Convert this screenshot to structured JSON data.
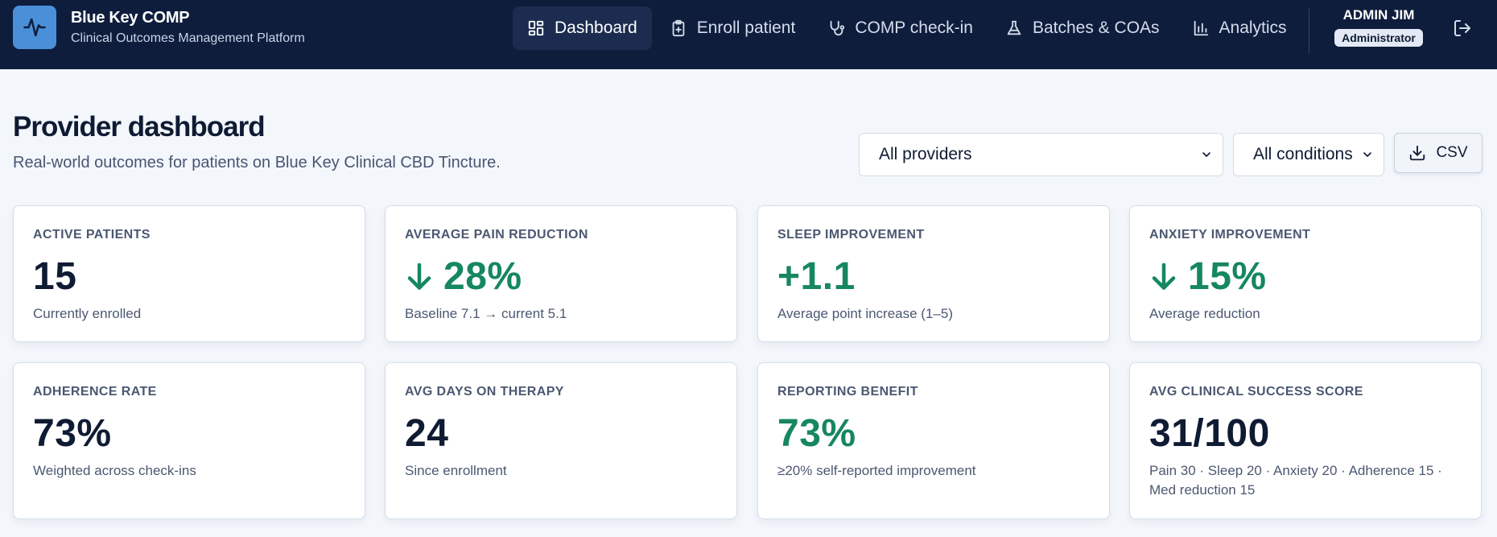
{
  "brand": {
    "title": "Blue Key COMP",
    "subtitle": "Clinical Outcomes Management Platform",
    "logo_icon": "pulse-icon",
    "logo_color": "#4a90d9"
  },
  "nav": {
    "items": [
      {
        "label": "Dashboard",
        "icon": "dashboard-grid-icon",
        "active": true
      },
      {
        "label": "Enroll patient",
        "icon": "clipboard-plus-icon",
        "active": false
      },
      {
        "label": "COMP check-in",
        "icon": "stethoscope-icon",
        "active": false
      },
      {
        "label": "Batches & COAs",
        "icon": "flask-icon",
        "active": false
      },
      {
        "label": "Analytics",
        "icon": "bar-chart-icon",
        "active": false
      }
    ]
  },
  "user": {
    "name": "ADMIN JIM",
    "role": "Administrator",
    "logout_icon": "logout-icon"
  },
  "page": {
    "title": "Provider dashboard",
    "subtitle": "Real-world outcomes for patients on Blue Key Clinical CBD Tincture."
  },
  "filters": {
    "provider_selected": "All providers",
    "condition_selected": "All conditions",
    "csv_label": "CSV"
  },
  "colors": {
    "header_bg": "#0f1d3d",
    "page_bg": "#f3f7fc",
    "positive": "#16875f"
  },
  "cards": [
    {
      "label": "ACTIVE PATIENTS",
      "value": "15",
      "desc": "Currently enrolled",
      "trend": "none"
    },
    {
      "label": "AVERAGE PAIN REDUCTION",
      "value": "28%",
      "desc": "Baseline 7.1 → current 5.1",
      "trend": "down"
    },
    {
      "label": "SLEEP IMPROVEMENT",
      "value": "+1.1",
      "desc": "Average point increase (1–5)",
      "trend": "positive"
    },
    {
      "label": "ANXIETY IMPROVEMENT",
      "value": "15%",
      "desc": "Average reduction",
      "trend": "down"
    },
    {
      "label": "ADHERENCE RATE",
      "value": "73%",
      "desc": "Weighted across check-ins",
      "trend": "none"
    },
    {
      "label": "AVG DAYS ON THERAPY",
      "value": "24",
      "desc": "Since enrollment",
      "trend": "none"
    },
    {
      "label": "REPORTING BENEFIT",
      "value": "73%",
      "desc": "≥20% self-reported improvement",
      "trend": "positive"
    },
    {
      "label": "AVG CLINICAL SUCCESS SCORE",
      "value": "31/100",
      "desc": "Pain 30 · Sleep 20 · Anxiety 20 · Adherence 15 · Med reduction 15",
      "trend": "none"
    }
  ]
}
